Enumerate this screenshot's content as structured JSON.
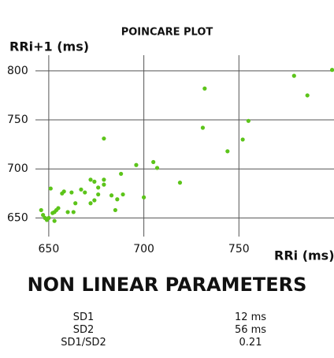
{
  "chart_data": {
    "type": "scatter",
    "title": "POINCARE PLOT",
    "y_label": "RRi+1 (ms)",
    "x_label": "RRi (ms)",
    "color": "#5cc41a",
    "grid": true,
    "xlim": [
      643,
      800
    ],
    "ylim": [
      631,
      816
    ],
    "xticks": [
      650,
      700,
      750
    ],
    "yticks": [
      650,
      700,
      750,
      800
    ],
    "x": [
      646,
      647,
      648,
      650,
      651,
      652,
      653,
      654,
      655,
      653,
      649,
      657,
      658,
      660,
      662,
      664,
      663,
      667,
      669,
      672,
      672,
      674,
      674,
      676,
      676,
      679,
      679,
      679,
      683,
      685,
      686,
      688,
      689,
      696,
      700,
      705,
      707,
      719,
      732,
      731,
      744,
      755,
      752,
      779,
      786,
      799
    ],
    "values": [
      658,
      653,
      650,
      650,
      680,
      655,
      656,
      658,
      660,
      647,
      648,
      675,
      677,
      656,
      676,
      665,
      656,
      679,
      676,
      689,
      665,
      668,
      687,
      681,
      674,
      689,
      684,
      731,
      673,
      658,
      669,
      695,
      674,
      704,
      671,
      707,
      701,
      686,
      782,
      742,
      718,
      749,
      730,
      795,
      775,
      801
    ]
  },
  "section_title": "NON LINEAR PARAMETERS",
  "parameters": [
    [
      "SD1",
      "12 ms"
    ],
    [
      "SD2",
      "56 ms"
    ],
    [
      "SD1/SD2",
      "0.21"
    ]
  ]
}
